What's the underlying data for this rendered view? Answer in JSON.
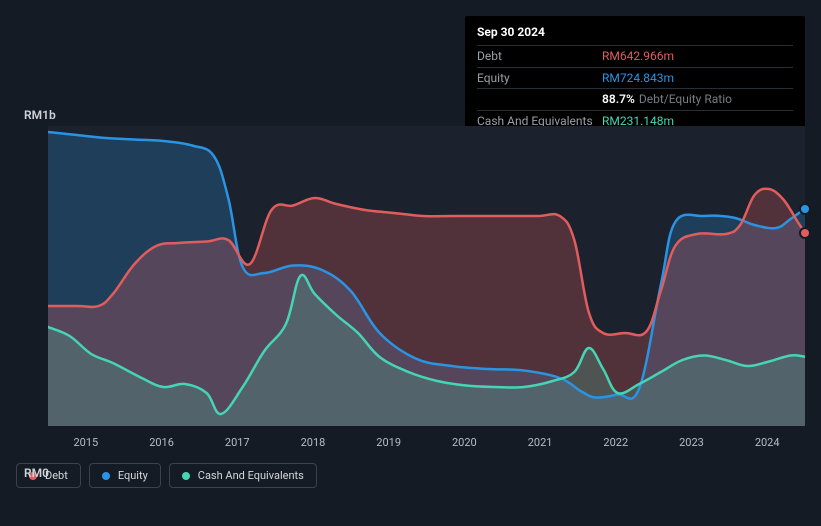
{
  "tooltip": {
    "date": "Sep 30 2024",
    "rows": [
      {
        "label": "Debt",
        "value": "RM642.966m",
        "color": "#e15d5d"
      },
      {
        "label": "Equity",
        "value": "RM724.843m",
        "color": "#2a94e4"
      },
      {
        "label": "",
        "pct": "88.7%",
        "ratio_label": "Debt/Equity Ratio"
      },
      {
        "label": "Cash And Equivalents",
        "value": "RM231.148m",
        "color": "#46d5b3"
      }
    ]
  },
  "chart": {
    "type": "area",
    "background": "#1b222d",
    "page_bg": "#151b24",
    "y_top_label": "RM1b",
    "y_bottom_label": "RM0",
    "ylim": [
      0,
      1000
    ],
    "x_years": [
      "2015",
      "2016",
      "2017",
      "2018",
      "2019",
      "2020",
      "2021",
      "2022",
      "2023",
      "2024"
    ],
    "xlim": [
      2014.4,
      2024.9
    ],
    "series": [
      {
        "name": "Equity",
        "color": "#2a94e4",
        "fill": "rgba(42,148,228,0.25)",
        "line_width": 2.5,
        "points": [
          [
            2014.4,
            980
          ],
          [
            2014.8,
            970
          ],
          [
            2015.2,
            960
          ],
          [
            2015.6,
            955
          ],
          [
            2016.0,
            950
          ],
          [
            2016.4,
            935
          ],
          [
            2016.7,
            900
          ],
          [
            2016.9,
            760
          ],
          [
            2017.1,
            530
          ],
          [
            2017.4,
            510
          ],
          [
            2017.8,
            535
          ],
          [
            2018.2,
            520
          ],
          [
            2018.6,
            450
          ],
          [
            2019.0,
            310
          ],
          [
            2019.5,
            225
          ],
          [
            2020.0,
            200
          ],
          [
            2020.5,
            190
          ],
          [
            2021.0,
            185
          ],
          [
            2021.5,
            160
          ],
          [
            2021.8,
            115
          ],
          [
            2022.0,
            95
          ],
          [
            2022.3,
            105
          ],
          [
            2022.6,
            125
          ],
          [
            2022.9,
            470
          ],
          [
            2023.1,
            680
          ],
          [
            2023.5,
            700
          ],
          [
            2023.9,
            695
          ],
          [
            2024.2,
            670
          ],
          [
            2024.5,
            660
          ],
          [
            2024.7,
            690
          ],
          [
            2024.9,
            725
          ]
        ]
      },
      {
        "name": "Debt",
        "color": "#e15d5d",
        "fill": "rgba(225,93,93,0.28)",
        "line_width": 2.5,
        "points": [
          [
            2014.4,
            400
          ],
          [
            2014.8,
            400
          ],
          [
            2015.1,
            400
          ],
          [
            2015.3,
            440
          ],
          [
            2015.6,
            540
          ],
          [
            2015.9,
            600
          ],
          [
            2016.2,
            610
          ],
          [
            2016.6,
            615
          ],
          [
            2016.9,
            620
          ],
          [
            2017.2,
            540
          ],
          [
            2017.5,
            720
          ],
          [
            2017.8,
            735
          ],
          [
            2018.1,
            760
          ],
          [
            2018.4,
            740
          ],
          [
            2018.8,
            720
          ],
          [
            2019.2,
            710
          ],
          [
            2019.6,
            700
          ],
          [
            2020.0,
            700
          ],
          [
            2020.4,
            700
          ],
          [
            2020.8,
            700
          ],
          [
            2021.2,
            700
          ],
          [
            2021.5,
            700
          ],
          [
            2021.7,
            620
          ],
          [
            2021.9,
            380
          ],
          [
            2022.1,
            310
          ],
          [
            2022.4,
            310
          ],
          [
            2022.7,
            315
          ],
          [
            2022.9,
            450
          ],
          [
            2023.1,
            600
          ],
          [
            2023.4,
            640
          ],
          [
            2023.8,
            640
          ],
          [
            2024.0,
            670
          ],
          [
            2024.2,
            770
          ],
          [
            2024.4,
            790
          ],
          [
            2024.6,
            755
          ],
          [
            2024.8,
            680
          ],
          [
            2024.9,
            643
          ]
        ]
      },
      {
        "name": "Cash And Equivalents",
        "color": "#46d5b3",
        "fill": "rgba(70,213,179,0.20)",
        "line_width": 2.5,
        "points": [
          [
            2014.4,
            330
          ],
          [
            2014.7,
            300
          ],
          [
            2015.0,
            240
          ],
          [
            2015.3,
            210
          ],
          [
            2015.7,
            160
          ],
          [
            2016.0,
            130
          ],
          [
            2016.3,
            140
          ],
          [
            2016.6,
            110
          ],
          [
            2016.8,
            40
          ],
          [
            2017.1,
            130
          ],
          [
            2017.4,
            250
          ],
          [
            2017.7,
            340
          ],
          [
            2017.9,
            500
          ],
          [
            2018.1,
            440
          ],
          [
            2018.4,
            370
          ],
          [
            2018.7,
            310
          ],
          [
            2019.0,
            230
          ],
          [
            2019.4,
            180
          ],
          [
            2019.8,
            150
          ],
          [
            2020.2,
            135
          ],
          [
            2020.6,
            130
          ],
          [
            2021.0,
            130
          ],
          [
            2021.4,
            150
          ],
          [
            2021.7,
            180
          ],
          [
            2021.9,
            260
          ],
          [
            2022.1,
            190
          ],
          [
            2022.3,
            110
          ],
          [
            2022.6,
            140
          ],
          [
            2022.9,
            180
          ],
          [
            2023.2,
            220
          ],
          [
            2023.5,
            235
          ],
          [
            2023.8,
            220
          ],
          [
            2024.1,
            200
          ],
          [
            2024.4,
            215
          ],
          [
            2024.7,
            235
          ],
          [
            2024.9,
            231
          ]
        ]
      }
    ],
    "end_markers": [
      {
        "color": "#2a94e4",
        "y": 725
      },
      {
        "color": "#e15d5d",
        "y": 643
      }
    ]
  },
  "legend": [
    {
      "label": "Debt",
      "color": "#e15d5d"
    },
    {
      "label": "Equity",
      "color": "#2a94e4"
    },
    {
      "label": "Cash And Equivalents",
      "color": "#46d5b3"
    }
  ]
}
